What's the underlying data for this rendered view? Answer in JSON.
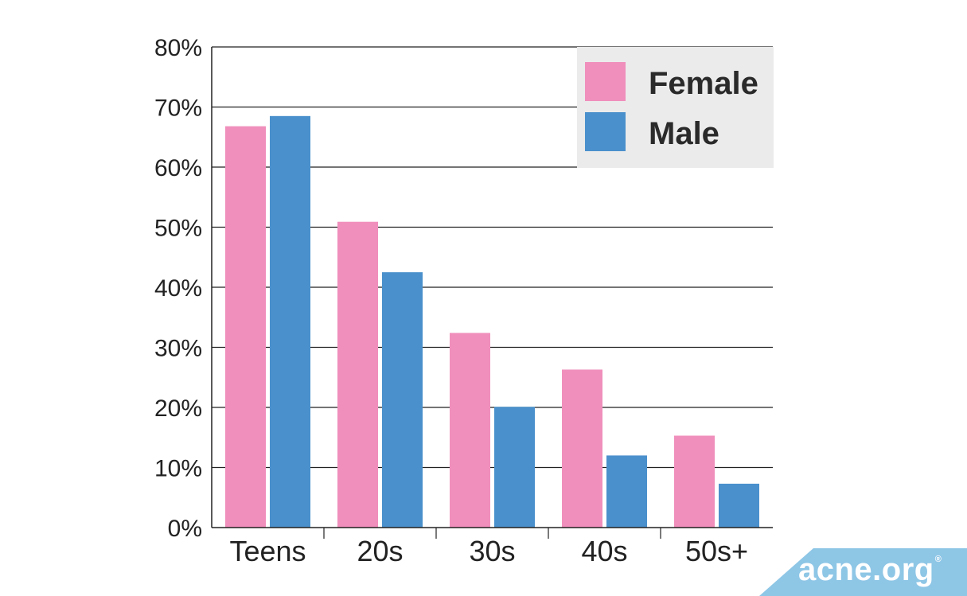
{
  "chart_data": {
    "type": "bar",
    "categories": [
      "Teens",
      "20s",
      "30s",
      "40s",
      "50s+"
    ],
    "series": [
      {
        "name": "Female",
        "values": [
          66.8,
          50.9,
          32.4,
          26.3,
          15.3
        ],
        "color": "#f08fbc"
      },
      {
        "name": "Male",
        "values": [
          68.5,
          42.5,
          20.1,
          12.0,
          7.3
        ],
        "color": "#4a90cc"
      }
    ],
    "yticks": [
      "0%",
      "10%",
      "20%",
      "30%",
      "40%",
      "50%",
      "60%",
      "70%",
      "80%"
    ],
    "ylim": [
      0,
      80
    ],
    "grid": true,
    "legend": {
      "position": "top-right"
    }
  },
  "colors": {
    "grid": "#222222",
    "legend_background": "#ebebeb",
    "logo_background": "#8ec6e6"
  },
  "logo": {
    "text": "acne.org",
    "mark": "®"
  }
}
